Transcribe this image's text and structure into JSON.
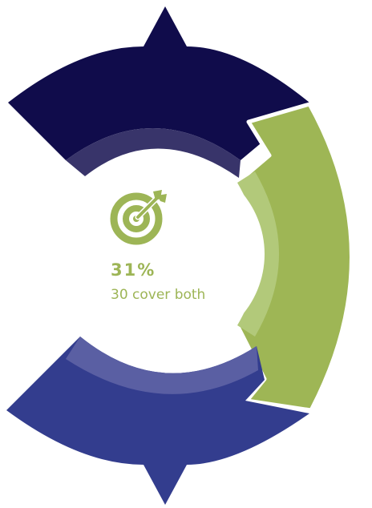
{
  "colors": {
    "navy": "#100c4b",
    "navy_inner": "#38346a",
    "blue": "#333d8e",
    "blue_inner": "#5a5fa3",
    "green": "#9eb655",
    "green_inner": "#b2c97a",
    "accent_text": "#9db556"
  },
  "center": {
    "icon": "target-arrow-icon",
    "percent": "31%",
    "caption": "30 cover both"
  },
  "segments": [
    {
      "name": "top-arrow",
      "color": "#100c4b"
    },
    {
      "name": "right-arrow",
      "color": "#9eb655"
    },
    {
      "name": "bottom-arrow",
      "color": "#333d8e"
    }
  ]
}
